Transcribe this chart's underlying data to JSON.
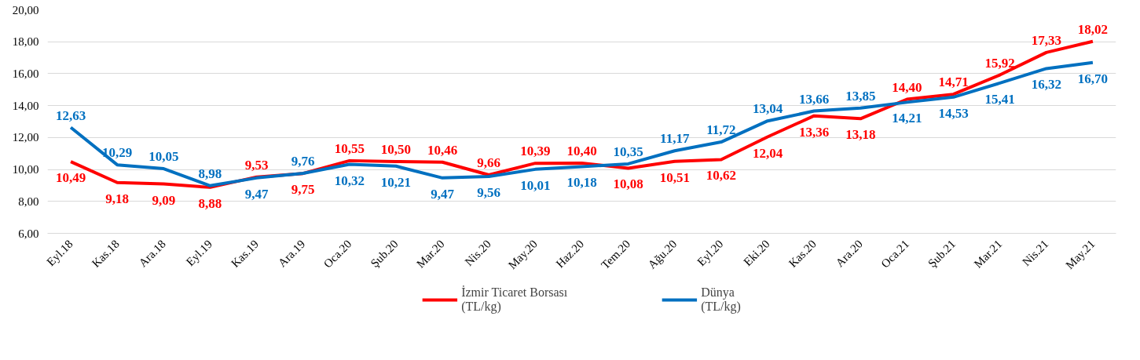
{
  "chart_data": {
    "type": "line",
    "categories": [
      "Eyl.18",
      "Kas.18",
      "Ara.18",
      "Eyl.19",
      "Kas.19",
      "Ara.19",
      "Oca.20",
      "Şub.20",
      "Mar.20",
      "Nis.20",
      "May.20",
      "Haz.20",
      "Tem.20",
      "Ağu.20",
      "Eyl.20",
      "Eki.20",
      "Kas.20",
      "Ara.20",
      "Oca.21",
      "Şub.21",
      "Mar.21",
      "Nis.21",
      "May.21"
    ],
    "series": [
      {
        "name": "İzmir Ticaret Borsası\n(TL/kg)",
        "color": "#ff0000",
        "values": [
          10.49,
          9.18,
          9.09,
          8.88,
          9.53,
          9.75,
          10.55,
          10.5,
          10.46,
          9.66,
          10.39,
          10.4,
          10.08,
          10.51,
          10.62,
          12.04,
          13.36,
          13.18,
          14.4,
          14.71,
          15.92,
          17.33,
          18.02
        ],
        "value_labels": [
          "10,49",
          "9,18",
          "9,09",
          "8,88",
          "9,53",
          "9,75",
          "10,55",
          "10,50",
          "10,46",
          "9,66",
          "10,39",
          "10,40",
          "10,08",
          "10,51",
          "10,62",
          "12,04",
          "13,36",
          "13,18",
          "14,40",
          "14,71",
          "15,92",
          "17,33",
          "18,02"
        ]
      },
      {
        "name": "Dünya\n(TL/kg)",
        "color": "#0070c0",
        "values": [
          12.63,
          10.29,
          10.05,
          8.98,
          9.47,
          9.76,
          10.32,
          10.21,
          9.47,
          9.56,
          10.01,
          10.18,
          10.35,
          11.17,
          11.72,
          13.04,
          13.66,
          13.85,
          14.21,
          14.53,
          15.41,
          16.32,
          16.7
        ],
        "value_labels": [
          "12,63",
          "10,29",
          "10,05",
          "8,98",
          "9,47",
          "9,76",
          "10,32",
          "10,21",
          "9,47",
          "9,56",
          "10,01",
          "10,18",
          "10,35",
          "11,17",
          "11,72",
          "13,04",
          "13,66",
          "13,85",
          "14,21",
          "14,53",
          "15,41",
          "16,32",
          "16,70"
        ]
      }
    ],
    "ylim": [
      6,
      20
    ],
    "yticks": [
      {
        "value": 6,
        "label": "6,00"
      },
      {
        "value": 8,
        "label": "8,00"
      },
      {
        "value": 10,
        "label": "10,00"
      },
      {
        "value": 12,
        "label": "12,00"
      },
      {
        "value": 14,
        "label": "14,00"
      },
      {
        "value": 16,
        "label": "16,00"
      },
      {
        "value": 18,
        "label": "18,00"
      },
      {
        "value": 20,
        "label": "20,00"
      }
    ],
    "grid": "y",
    "legend": "bottom",
    "marker": "none",
    "line_style": "solid"
  }
}
